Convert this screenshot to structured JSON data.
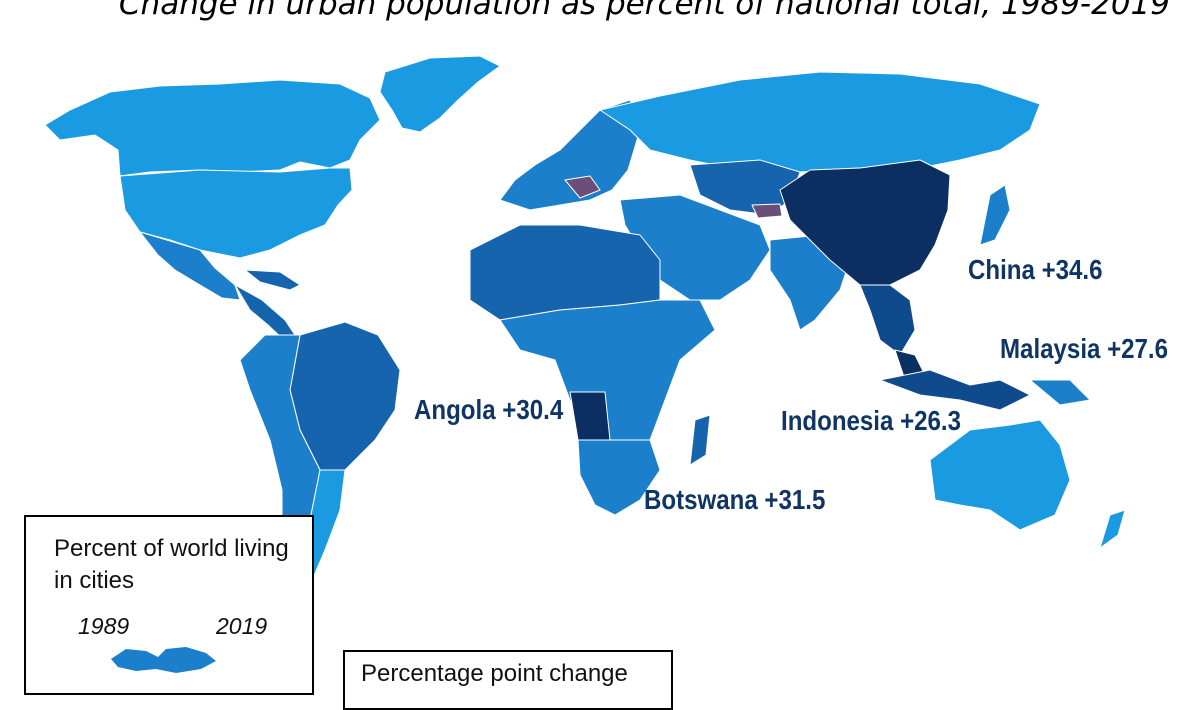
{
  "title": "Change in urban population as percent of national total, 1989-2019",
  "callouts": {
    "china": "China +34.6",
    "malaysia": "Malaysia +27.6",
    "angola": "Angola +30.4",
    "indonesia": "Indonesia +26.3",
    "botswana": "Botswana +31.5"
  },
  "inset": {
    "title": "Percent of world living in cities",
    "year_left": "1989",
    "year_right": "2019"
  },
  "legend": {
    "title": "Percentage point change"
  },
  "colors": {
    "lightest": "#1a9ae0",
    "light": "#1b7fcc",
    "mid": "#1564ad",
    "dark": "#0f4a8c",
    "darkest": "#0c2f63",
    "negative": "#6b4f7a",
    "callout_text": "#0f3565",
    "border": "#ffffff"
  }
}
